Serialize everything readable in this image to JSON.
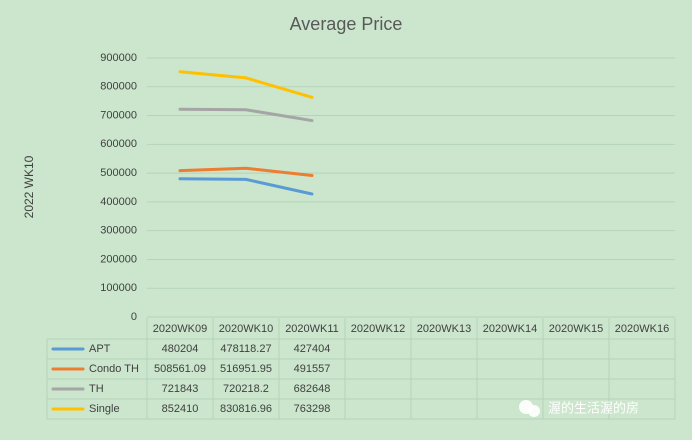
{
  "chart_data": {
    "type": "line",
    "title": "Average Price",
    "ylabel": "2022 WK10",
    "categories": [
      "2020WK09",
      "2020WK10",
      "2020WK11",
      "2020WK12",
      "2020WK13",
      "2020WK14",
      "2020WK15",
      "2020WK16"
    ],
    "series": [
      {
        "name": "APT",
        "color": "#5b9bd5",
        "values": [
          480204,
          478118.27,
          427404,
          null,
          null,
          null,
          null,
          null
        ]
      },
      {
        "name": "Condo TH",
        "color": "#ed7d31",
        "values": [
          508561.09,
          516951.95,
          491557,
          null,
          null,
          null,
          null,
          null
        ]
      },
      {
        "name": "TH",
        "color": "#a5a5a5",
        "values": [
          721843,
          720218.2,
          682648,
          null,
          null,
          null,
          null,
          null
        ]
      },
      {
        "name": "Single",
        "color": "#ffc000",
        "values": [
          852410,
          830816.96,
          763298,
          null,
          null,
          null,
          null,
          null
        ]
      }
    ],
    "ylim": [
      0,
      900000
    ],
    "yticks": [
      0,
      100000,
      200000,
      300000,
      400000,
      500000,
      600000,
      700000,
      800000,
      900000
    ],
    "grid": true,
    "watermark": "渥的生活渥的房"
  }
}
